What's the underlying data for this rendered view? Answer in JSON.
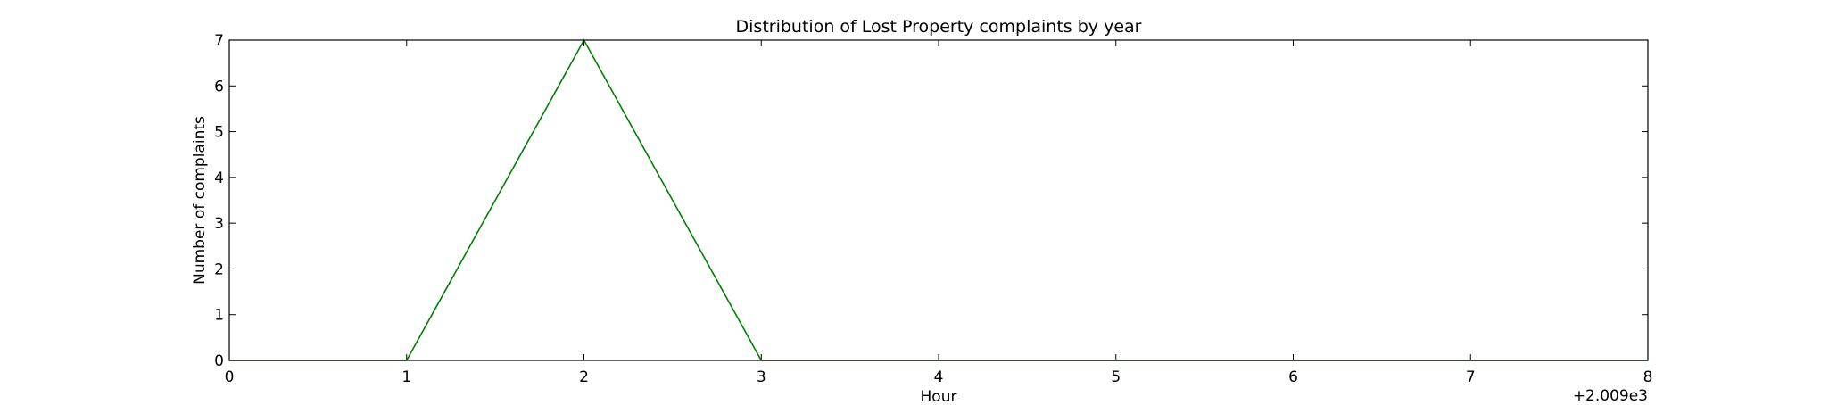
{
  "chart_data": {
    "type": "line",
    "title": "Distribution of  Lost Property complaints by year",
    "xlabel": "Hour",
    "ylabel": "Number of complaints",
    "x_offset_label": "+2.009e3",
    "xlim": [
      0,
      8
    ],
    "ylim": [
      0,
      7
    ],
    "x_ticks": [
      0,
      1,
      2,
      3,
      4,
      5,
      6,
      7,
      8
    ],
    "y_ticks": [
      0,
      1,
      2,
      3,
      4,
      5,
      6,
      7
    ],
    "grid": false,
    "series": [
      {
        "color": "#008000",
        "x": [
          0,
          1,
          2,
          3,
          4,
          5,
          6,
          7,
          8
        ],
        "values": [
          0,
          0,
          7,
          0,
          0,
          0,
          0,
          0,
          0
        ]
      }
    ]
  }
}
